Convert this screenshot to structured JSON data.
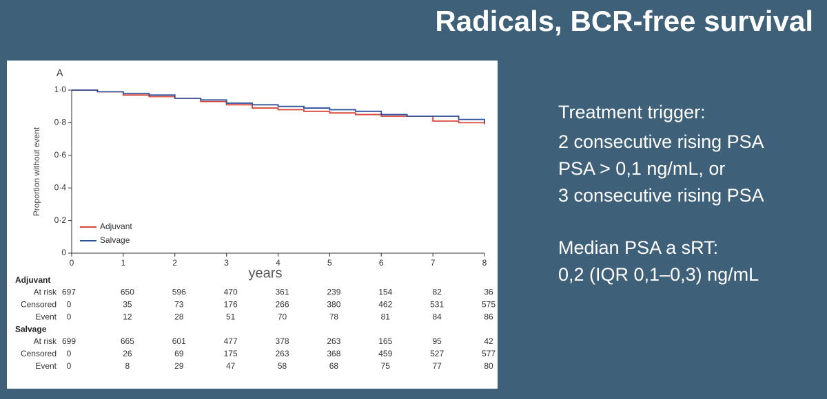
{
  "slide": {
    "title": "Radicals, BCR-free survival",
    "notes": [
      "Treatment trigger:",
      "2 consecutive rising PSA",
      "PSA > 0,1 ng/mL, or",
      "3 consecutive rising PSA",
      "Median PSA a sRT:",
      "0,2 (IQR 0,1–0,3) ng/mL"
    ]
  },
  "chart_data": {
    "type": "step",
    "panel_label": "A",
    "ylabel": "Proportion without event",
    "xlabel": "years",
    "x": [
      0,
      0.5,
      1,
      1.5,
      2,
      2.5,
      3,
      3.5,
      4,
      4.5,
      5,
      5.5,
      6,
      6.5,
      7,
      7.5,
      8
    ],
    "series": [
      {
        "name": "Adjuvant",
        "color": "#d9453a",
        "values": [
          1,
          0.99,
          0.97,
          0.96,
          0.95,
          0.93,
          0.91,
          0.89,
          0.88,
          0.87,
          0.86,
          0.85,
          0.84,
          0.84,
          0.81,
          0.8,
          0.79
        ]
      },
      {
        "name": "Salvage",
        "color": "#2e4f9a",
        "values": [
          1,
          0.99,
          0.98,
          0.97,
          0.95,
          0.94,
          0.92,
          0.91,
          0.9,
          0.89,
          0.88,
          0.87,
          0.85,
          0.84,
          0.84,
          0.82,
          0.8
        ]
      }
    ],
    "xlim": [
      0,
      8
    ],
    "xticks": [
      0,
      1,
      2,
      3,
      4,
      5,
      6,
      7,
      8
    ],
    "ylim": [
      0,
      1
    ],
    "yticks": [
      0,
      {
        "value": 0.2,
        "label": "0·2"
      },
      {
        "value": 0.4,
        "label": "0·4"
      },
      {
        "value": 0.6,
        "label": "0·6"
      },
      {
        "value": 0.8,
        "label": "0·8"
      },
      {
        "value": 1,
        "label": "1·0"
      }
    ],
    "legend": "lower-left",
    "risk_table": {
      "groups": [
        {
          "name": "Adjuvant",
          "rows": [
            {
              "label": "At risk",
              "values": [
                697,
                650,
                596,
                470,
                361,
                239,
                154,
                82,
                36
              ]
            },
            {
              "label": "Censored",
              "values": [
                0,
                35,
                73,
                176,
                266,
                380,
                462,
                531,
                575
              ]
            },
            {
              "label": "Event",
              "values": [
                0,
                12,
                28,
                51,
                70,
                78,
                81,
                84,
                86
              ]
            }
          ]
        },
        {
          "name": "Salvage",
          "rows": [
            {
              "label": "At risk",
              "values": [
                699,
                665,
                601,
                477,
                378,
                263,
                165,
                95,
                42
              ]
            },
            {
              "label": "Censored",
              "values": [
                0,
                26,
                69,
                175,
                263,
                368,
                459,
                527,
                577
              ]
            },
            {
              "label": "Event",
              "values": [
                0,
                8,
                29,
                47,
                58,
                68,
                75,
                77,
                80
              ]
            }
          ]
        }
      ]
    }
  }
}
